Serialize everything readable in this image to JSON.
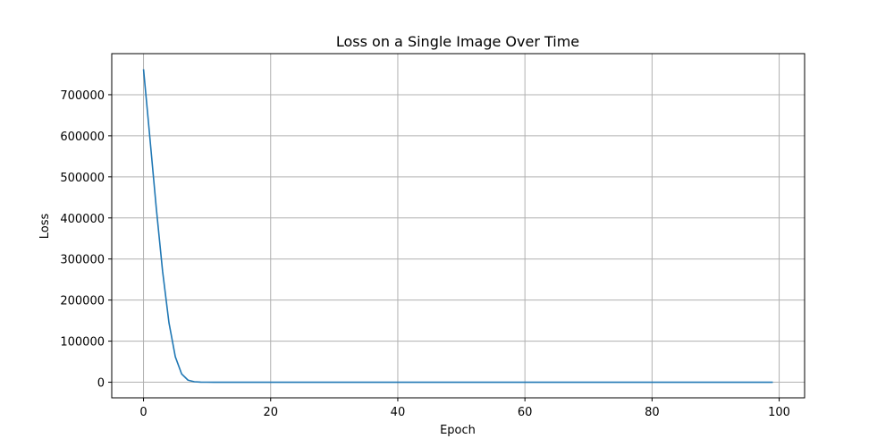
{
  "chart_data": {
    "type": "line",
    "title": "Loss on a Single Image Over Time",
    "xlabel": "Epoch",
    "ylabel": "Loss",
    "xlim": [
      -5,
      104
    ],
    "ylim": [
      -38000,
      800000
    ],
    "xticks": [
      0,
      20,
      40,
      60,
      80,
      100
    ],
    "yticks": [
      0,
      100000,
      200000,
      300000,
      400000,
      500000,
      600000,
      700000
    ],
    "xtick_labels": [
      "0",
      "20",
      "40",
      "60",
      "80",
      "100"
    ],
    "ytick_labels": [
      "0",
      "100000",
      "200000",
      "300000",
      "400000",
      "500000",
      "600000",
      "700000"
    ],
    "grid": true,
    "series": [
      {
        "color": "#1f77b4",
        "x": [
          0,
          1,
          2,
          3,
          4,
          5,
          6,
          7,
          8,
          9,
          10,
          11,
          12,
          13,
          14,
          15,
          16,
          17,
          18,
          19,
          20,
          21,
          22,
          23,
          24,
          25,
          26,
          27,
          28,
          29,
          30,
          31,
          32,
          33,
          34,
          35,
          36,
          37,
          38,
          39,
          40,
          41,
          42,
          43,
          44,
          45,
          46,
          47,
          48,
          49,
          50,
          51,
          52,
          53,
          54,
          55,
          56,
          57,
          58,
          59,
          60,
          61,
          62,
          63,
          64,
          65,
          66,
          67,
          68,
          69,
          70,
          71,
          72,
          73,
          74,
          75,
          76,
          77,
          78,
          79,
          80,
          81,
          82,
          83,
          84,
          85,
          86,
          87,
          88,
          89,
          90,
          91,
          92,
          93,
          94,
          95,
          96,
          97,
          98,
          99
        ],
        "y": [
          762000,
          595000,
          425000,
          270000,
          145000,
          62000,
          20000,
          5000,
          1200,
          300,
          100,
          40,
          20,
          10,
          5,
          3,
          2,
          1,
          1,
          1,
          0,
          0,
          0,
          0,
          0,
          0,
          0,
          0,
          0,
          0,
          0,
          0,
          0,
          0,
          0,
          0,
          0,
          0,
          0,
          0,
          0,
          0,
          0,
          0,
          0,
          0,
          0,
          0,
          0,
          0,
          0,
          0,
          0,
          0,
          0,
          0,
          0,
          0,
          0,
          0,
          0,
          0,
          0,
          0,
          0,
          0,
          0,
          0,
          0,
          0,
          0,
          0,
          0,
          0,
          0,
          0,
          0,
          0,
          0,
          0,
          0,
          0,
          0,
          0,
          0,
          0,
          0,
          0,
          0,
          0,
          0,
          0,
          0,
          0,
          0,
          0,
          0,
          0,
          0,
          0
        ]
      }
    ]
  }
}
